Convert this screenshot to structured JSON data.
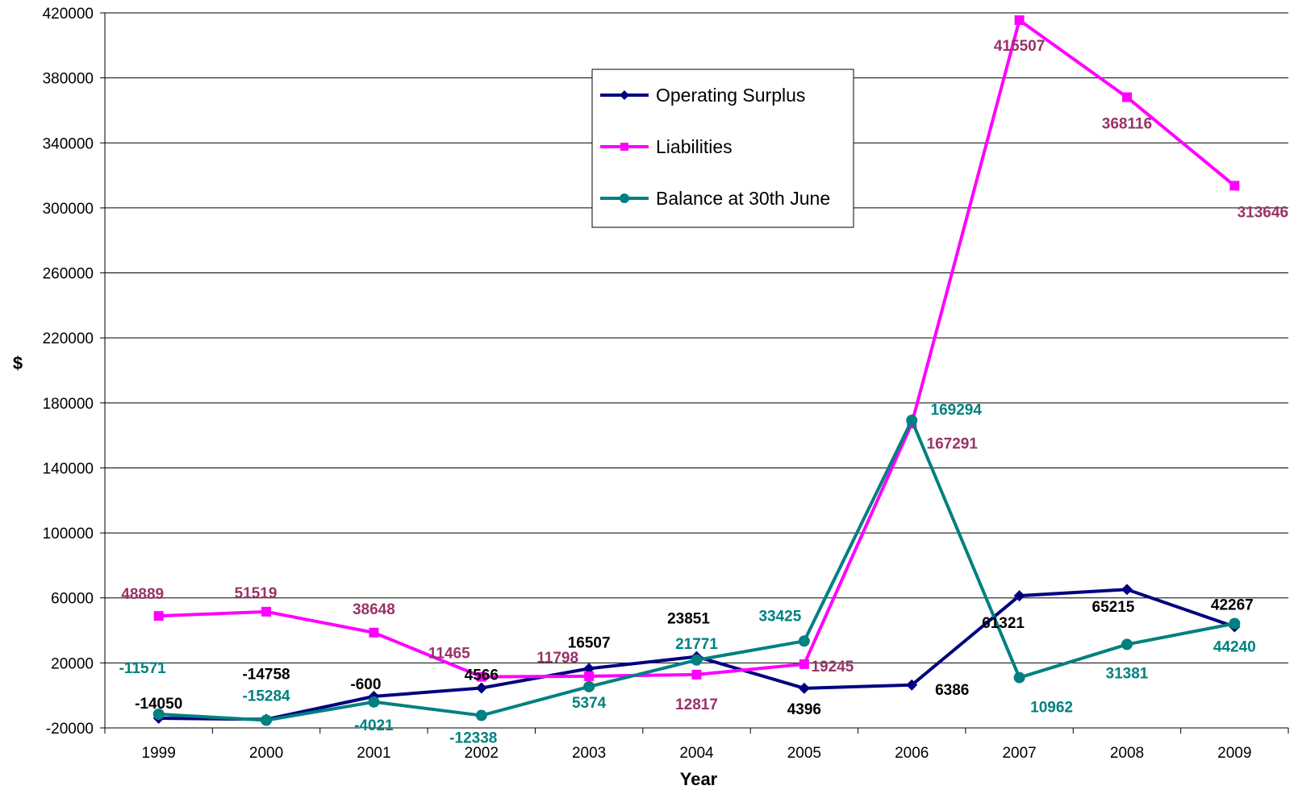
{
  "chart_data": {
    "type": "line",
    "title": "",
    "xlabel": "Year",
    "ylabel": "$",
    "categories": [
      "1999",
      "2000",
      "2001",
      "2002",
      "2003",
      "2004",
      "2005",
      "2006",
      "2007",
      "2008",
      "2009"
    ],
    "ylim": [
      -20000,
      420000
    ],
    "yticks": [
      -20000,
      20000,
      60000,
      100000,
      140000,
      180000,
      220000,
      260000,
      300000,
      340000,
      380000,
      420000
    ],
    "ytick_labels": [
      "-20000",
      "20000",
      "60000",
      "100000",
      "140000",
      "180000",
      "220000",
      "260000",
      "300000",
      "340000",
      "380000",
      "420000"
    ],
    "grid": "horizontal",
    "legend_position": "upper-middle",
    "series": [
      {
        "name": "Operating Surplus",
        "color": "#000080",
        "label_color": "#000000",
        "marker": "diamond",
        "values": [
          -14050,
          -14758,
          -600,
          4566,
          16507,
          23851,
          4396,
          6386,
          61321,
          65215,
          42267
        ],
        "labels": [
          "-14050",
          "-14758",
          "-600",
          "4566",
          "16507",
          "23851",
          "4396",
          "6386",
          "61321",
          "65215",
          "42267"
        ]
      },
      {
        "name": "Liabilities",
        "color": "#ff00ff",
        "label_color": "#993366",
        "marker": "square",
        "values": [
          48889,
          51519,
          38648,
          11465,
          11798,
          12817,
          19245,
          167291,
          415507,
          368116,
          313646
        ],
        "labels": [
          "48889",
          "51519",
          "38648",
          "11465",
          "11798",
          "12817",
          "19245",
          "167291",
          "415507",
          "368116",
          "313646"
        ]
      },
      {
        "name": "Balance at 30th June",
        "color": "#008080",
        "label_color": "#008080",
        "marker": "circle",
        "values": [
          -11571,
          -15284,
          -4021,
          -12338,
          5374,
          21771,
          33425,
          169294,
          10962,
          31381,
          44240
        ],
        "labels": [
          "-11571",
          "-15284",
          "-4021",
          "-12338",
          "5374",
          "21771",
          "33425",
          "169294",
          "10962",
          "31381",
          "44240"
        ]
      }
    ]
  }
}
